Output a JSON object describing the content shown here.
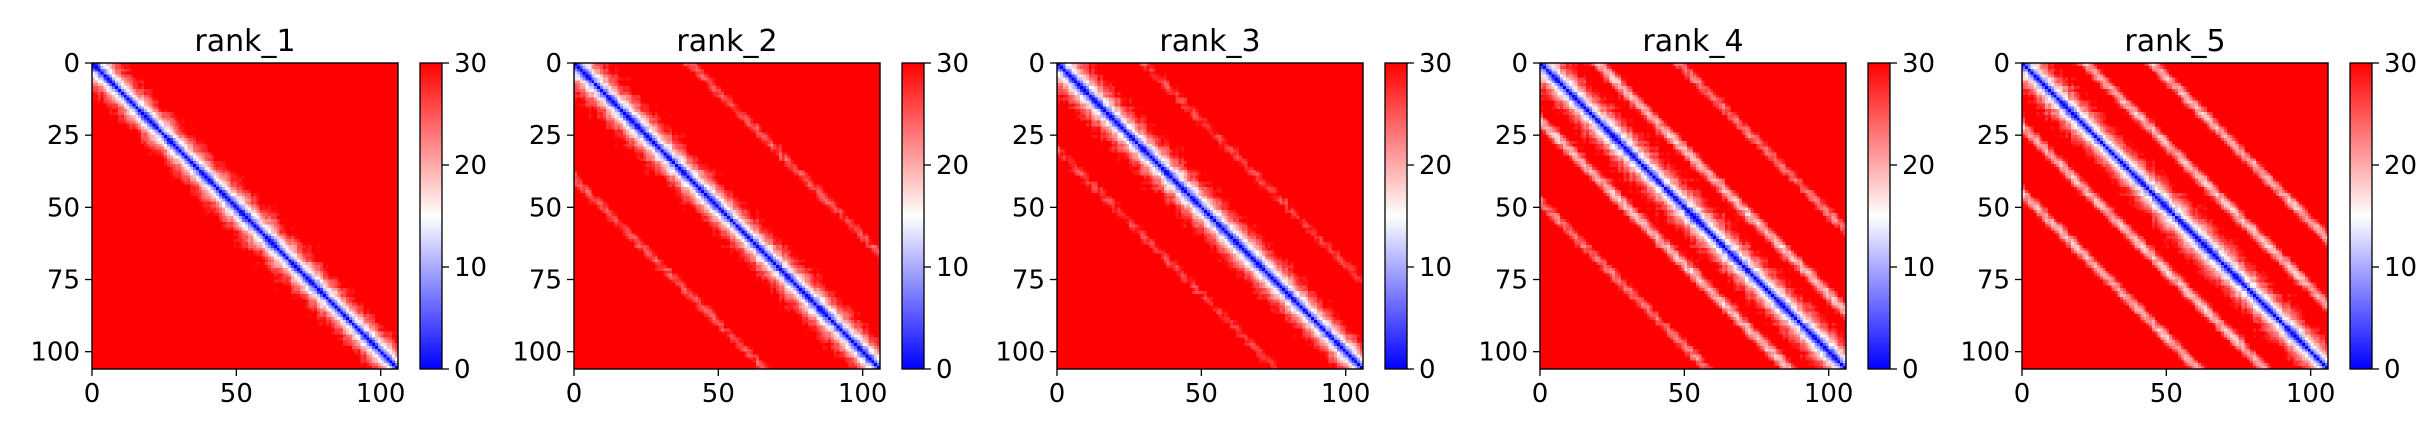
{
  "figure": {
    "background": "#ffffff",
    "colormap": "bwr",
    "colormap_stops": [
      "#0000ff",
      "#ffffff",
      "#ff0000"
    ]
  },
  "chart_data": [
    {
      "type": "heatmap",
      "title": "rank_1",
      "n": 106,
      "x_ticks": [
        0,
        50,
        100
      ],
      "y_ticks": [
        0,
        25,
        50,
        75,
        100
      ],
      "xlim": [
        0,
        106
      ],
      "ylim": [
        106,
        0
      ],
      "colorbar": {
        "min": 0,
        "max": 30,
        "ticks": [
          0,
          10,
          20,
          30
        ]
      },
      "pattern": {
        "band_halfwidth": 6,
        "secondary": [],
        "seed": 11
      },
      "description_values": "distance-like matrix, ~0 on diagonal rising to saturation 30 off-diagonal"
    },
    {
      "type": "heatmap",
      "title": "rank_2",
      "n": 106,
      "x_ticks": [
        0,
        50,
        100
      ],
      "y_ticks": [
        0,
        25,
        50,
        75,
        100
      ],
      "xlim": [
        0,
        106
      ],
      "ylim": [
        106,
        0
      ],
      "colorbar": {
        "min": 0,
        "max": 30,
        "ticks": [
          0,
          10,
          20,
          30
        ]
      },
      "pattern": {
        "band_halfwidth": 6,
        "secondary": [
          {
            "offset": 40,
            "strength": 0.3
          }
        ],
        "seed": 23
      },
      "description_values": "distance-like matrix, ~0 on diagonal rising to saturation 30 off-diagonal"
    },
    {
      "type": "heatmap",
      "title": "rank_3",
      "n": 106,
      "x_ticks": [
        0,
        50,
        100
      ],
      "y_ticks": [
        0,
        25,
        50,
        75,
        100
      ],
      "xlim": [
        0,
        106
      ],
      "ylim": [
        106,
        0
      ],
      "colorbar": {
        "min": 0,
        "max": 30,
        "ticks": [
          0,
          10,
          20,
          30
        ]
      },
      "pattern": {
        "band_halfwidth": 6,
        "secondary": [
          {
            "offset": 30,
            "strength": 0.25
          }
        ],
        "seed": 37
      },
      "description_values": "distance-like matrix, ~0 on diagonal rising to saturation 30 off-diagonal"
    },
    {
      "type": "heatmap",
      "title": "rank_4",
      "n": 106,
      "x_ticks": [
        0,
        50,
        100
      ],
      "y_ticks": [
        0,
        25,
        50,
        75,
        100
      ],
      "xlim": [
        0,
        106
      ],
      "ylim": [
        106,
        0
      ],
      "colorbar": {
        "min": 0,
        "max": 30,
        "ticks": [
          0,
          10,
          20,
          30
        ]
      },
      "pattern": {
        "band_halfwidth": 6,
        "secondary": [
          {
            "offset": 20,
            "strength": 0.45
          },
          {
            "offset": 48,
            "strength": 0.35
          }
        ],
        "seed": 41
      },
      "description_values": "distance-like matrix, ~0 on diagonal rising to saturation 30 off-diagonal"
    },
    {
      "type": "heatmap",
      "title": "rank_5",
      "n": 106,
      "x_ticks": [
        0,
        50,
        100
      ],
      "y_ticks": [
        0,
        25,
        50,
        75,
        100
      ],
      "xlim": [
        0,
        106
      ],
      "ylim": [
        106,
        0
      ],
      "colorbar": {
        "min": 0,
        "max": 30,
        "ticks": [
          0,
          10,
          20,
          30
        ]
      },
      "pattern": {
        "band_halfwidth": 6,
        "secondary": [
          {
            "offset": 22,
            "strength": 0.45
          },
          {
            "offset": 45,
            "strength": 0.45
          }
        ],
        "seed": 53
      },
      "description_values": "distance-like matrix, ~0 on diagonal rising to saturation 30 off-diagonal"
    }
  ]
}
